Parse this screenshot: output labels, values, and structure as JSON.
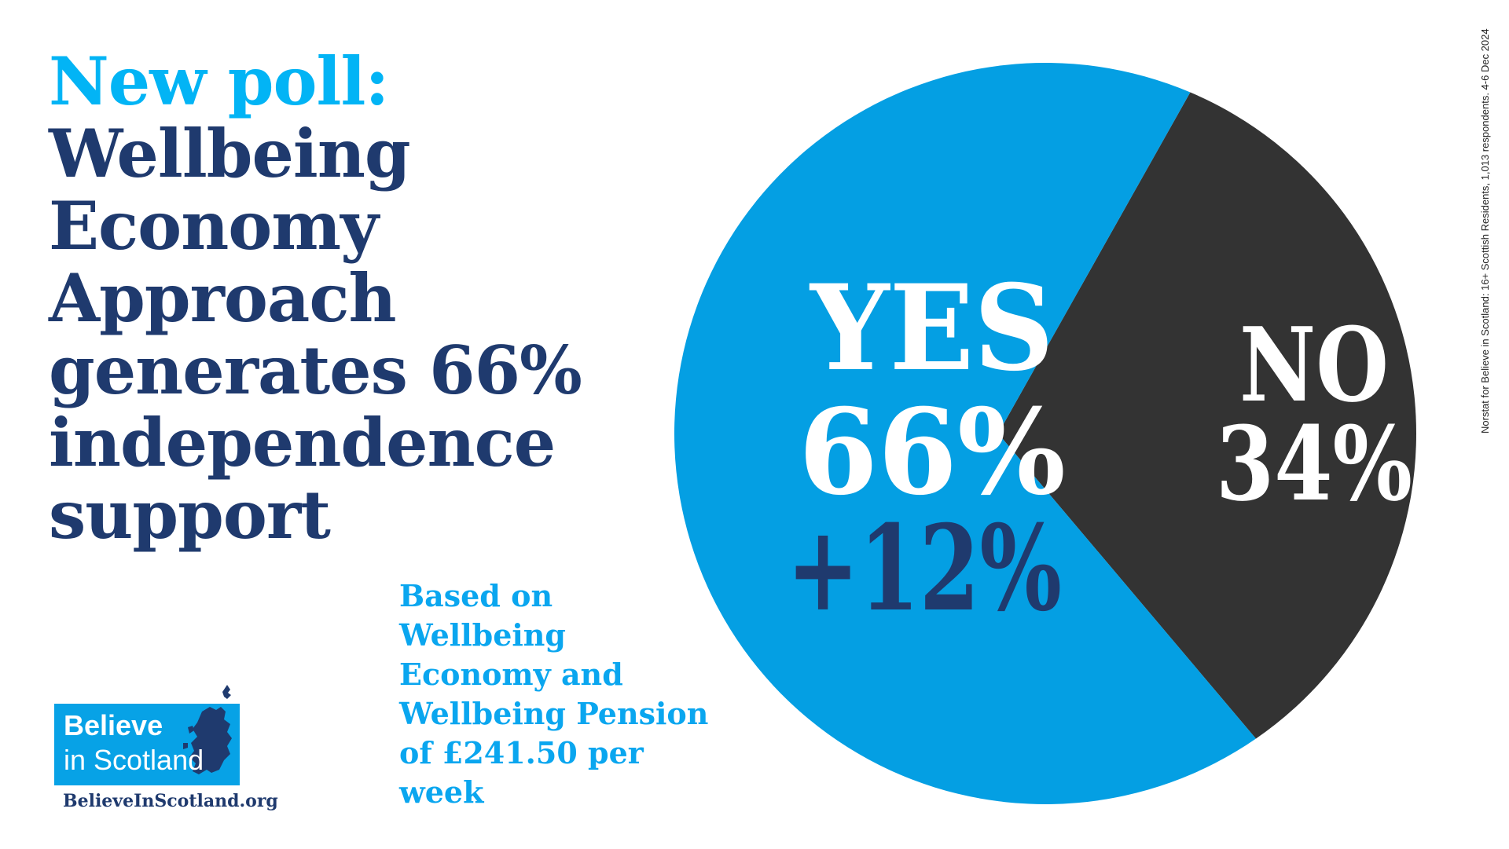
{
  "headline": {
    "line1": "New poll:",
    "lines": [
      "Wellbeing",
      "Economy",
      "Approach",
      "generates 66%",
      "independence",
      "support"
    ]
  },
  "subnote": [
    "Based on Wellbeing",
    "Economy and",
    "Wellbeing Pension",
    "of £241.50 per week"
  ],
  "logo": {
    "line1": "Believe",
    "line2": "in Scotland",
    "url": "BelieveInScotland.org"
  },
  "source": "Norstat for Believe in Scotland: 16+ Scottish Residents, 1,013 respondents. 4-6 Dec 2024",
  "colors": {
    "yes": "#049fe3",
    "no": "#333333",
    "accent": "#02b4f5",
    "navy": "#1f3a6e"
  },
  "chart_data": {
    "type": "pie",
    "categories": [
      "YES",
      "NO"
    ],
    "values": [
      66,
      34
    ],
    "labels": [
      "66%",
      "34%"
    ],
    "change": "+12%"
  }
}
